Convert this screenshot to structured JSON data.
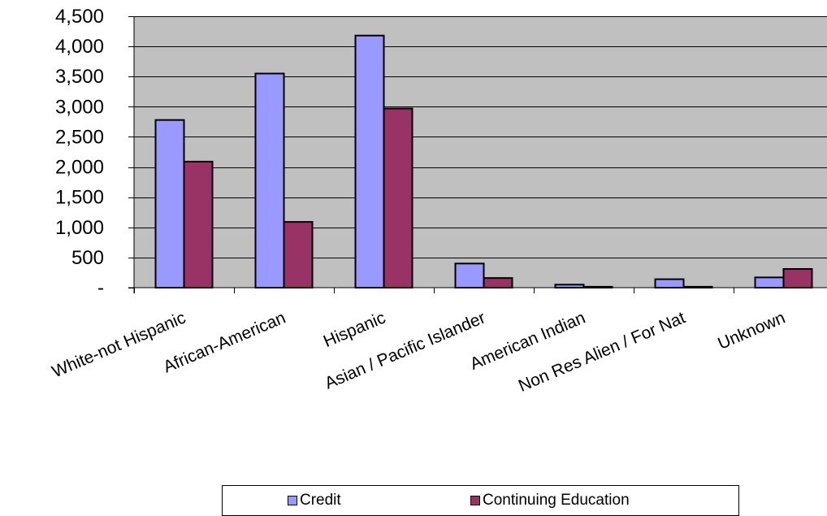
{
  "chart_data": {
    "type": "bar",
    "title": "",
    "xlabel": "",
    "ylabel": "",
    "categories": [
      "White-not Hispanic",
      "African-American",
      "Hispanic",
      "Asian / Pacific Islander",
      "American Indian",
      "Non Res Alien / For Nat",
      "Unknown"
    ],
    "series": [
      {
        "name": "Credit",
        "color": "#9999FF",
        "values": [
          2780,
          3550,
          4180,
          400,
          50,
          140,
          170
        ]
      },
      {
        "name": "Continuing Education",
        "color": "#993366",
        "values": [
          2090,
          1090,
          2970,
          160,
          15,
          15,
          310
        ]
      }
    ],
    "ylim": [
      0,
      4500
    ],
    "yticks": [
      0,
      500,
      1000,
      1500,
      2000,
      2500,
      3000,
      3500,
      4000,
      4500
    ],
    "ytick_labels": [
      "-",
      "500",
      "1,000",
      "1,500",
      "2,000",
      "2,500",
      "3,000",
      "3,500",
      "4,000",
      "4,500"
    ],
    "grid": true,
    "plot_background": "#C0C0C0",
    "legend_position": "bottom"
  }
}
